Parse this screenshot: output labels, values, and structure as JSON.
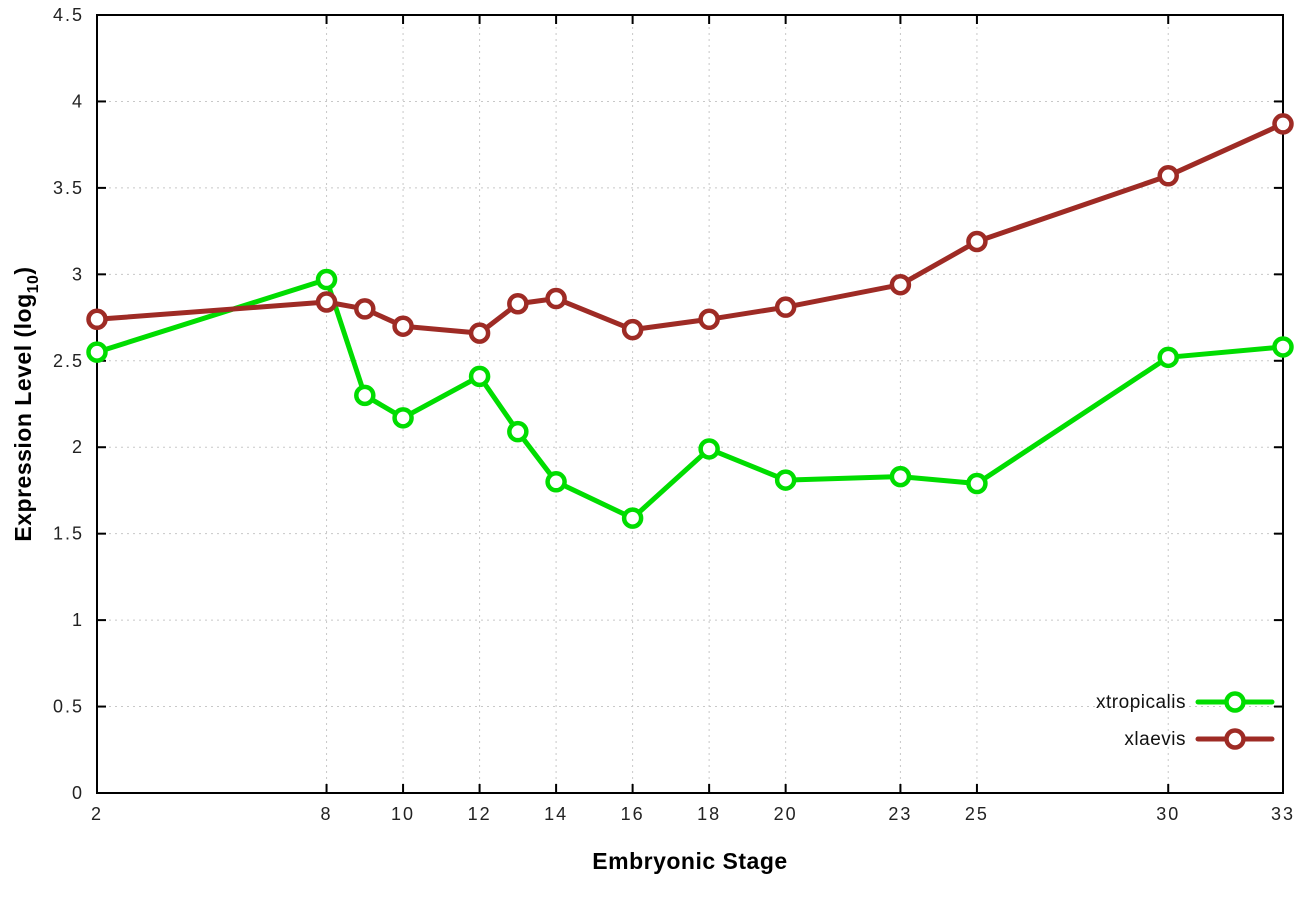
{
  "chart_data": {
    "type": "line",
    "title": "",
    "xlabel": "Embryonic Stage",
    "ylabel_prefix": "Expression Level (log",
    "ylabel_sub": "10",
    "ylabel_suffix": ")",
    "xlim": [
      2,
      33
    ],
    "ylim": [
      0,
      4.5
    ],
    "x_ticks": [
      2,
      8,
      10,
      12,
      14,
      16,
      18,
      20,
      23,
      25,
      30,
      33
    ],
    "y_ticks": [
      0,
      0.5,
      1,
      1.5,
      2,
      2.5,
      3,
      3.5,
      4,
      4.5
    ],
    "grid": true,
    "legend_position": "bottom-right",
    "x": [
      2,
      8,
      9,
      10,
      12,
      13,
      14,
      16,
      18,
      20,
      23,
      25,
      30,
      33
    ],
    "series": [
      {
        "name": "xtropicalis",
        "color": "#00dd00",
        "values": [
          2.55,
          2.97,
          2.3,
          2.17,
          2.41,
          2.09,
          1.8,
          1.59,
          1.99,
          1.81,
          1.83,
          1.79,
          2.52,
          2.58
        ]
      },
      {
        "name": "xlaevis",
        "color": "#9e2b25",
        "values": [
          2.74,
          2.84,
          2.8,
          2.7,
          2.66,
          2.83,
          2.86,
          2.68,
          2.74,
          2.81,
          2.94,
          3.19,
          3.57,
          3.87
        ]
      }
    ],
    "colors": {
      "grid": "#c8c8c8",
      "border": "#000000",
      "tick_text": "#222222",
      "label_text": "#000000"
    }
  }
}
